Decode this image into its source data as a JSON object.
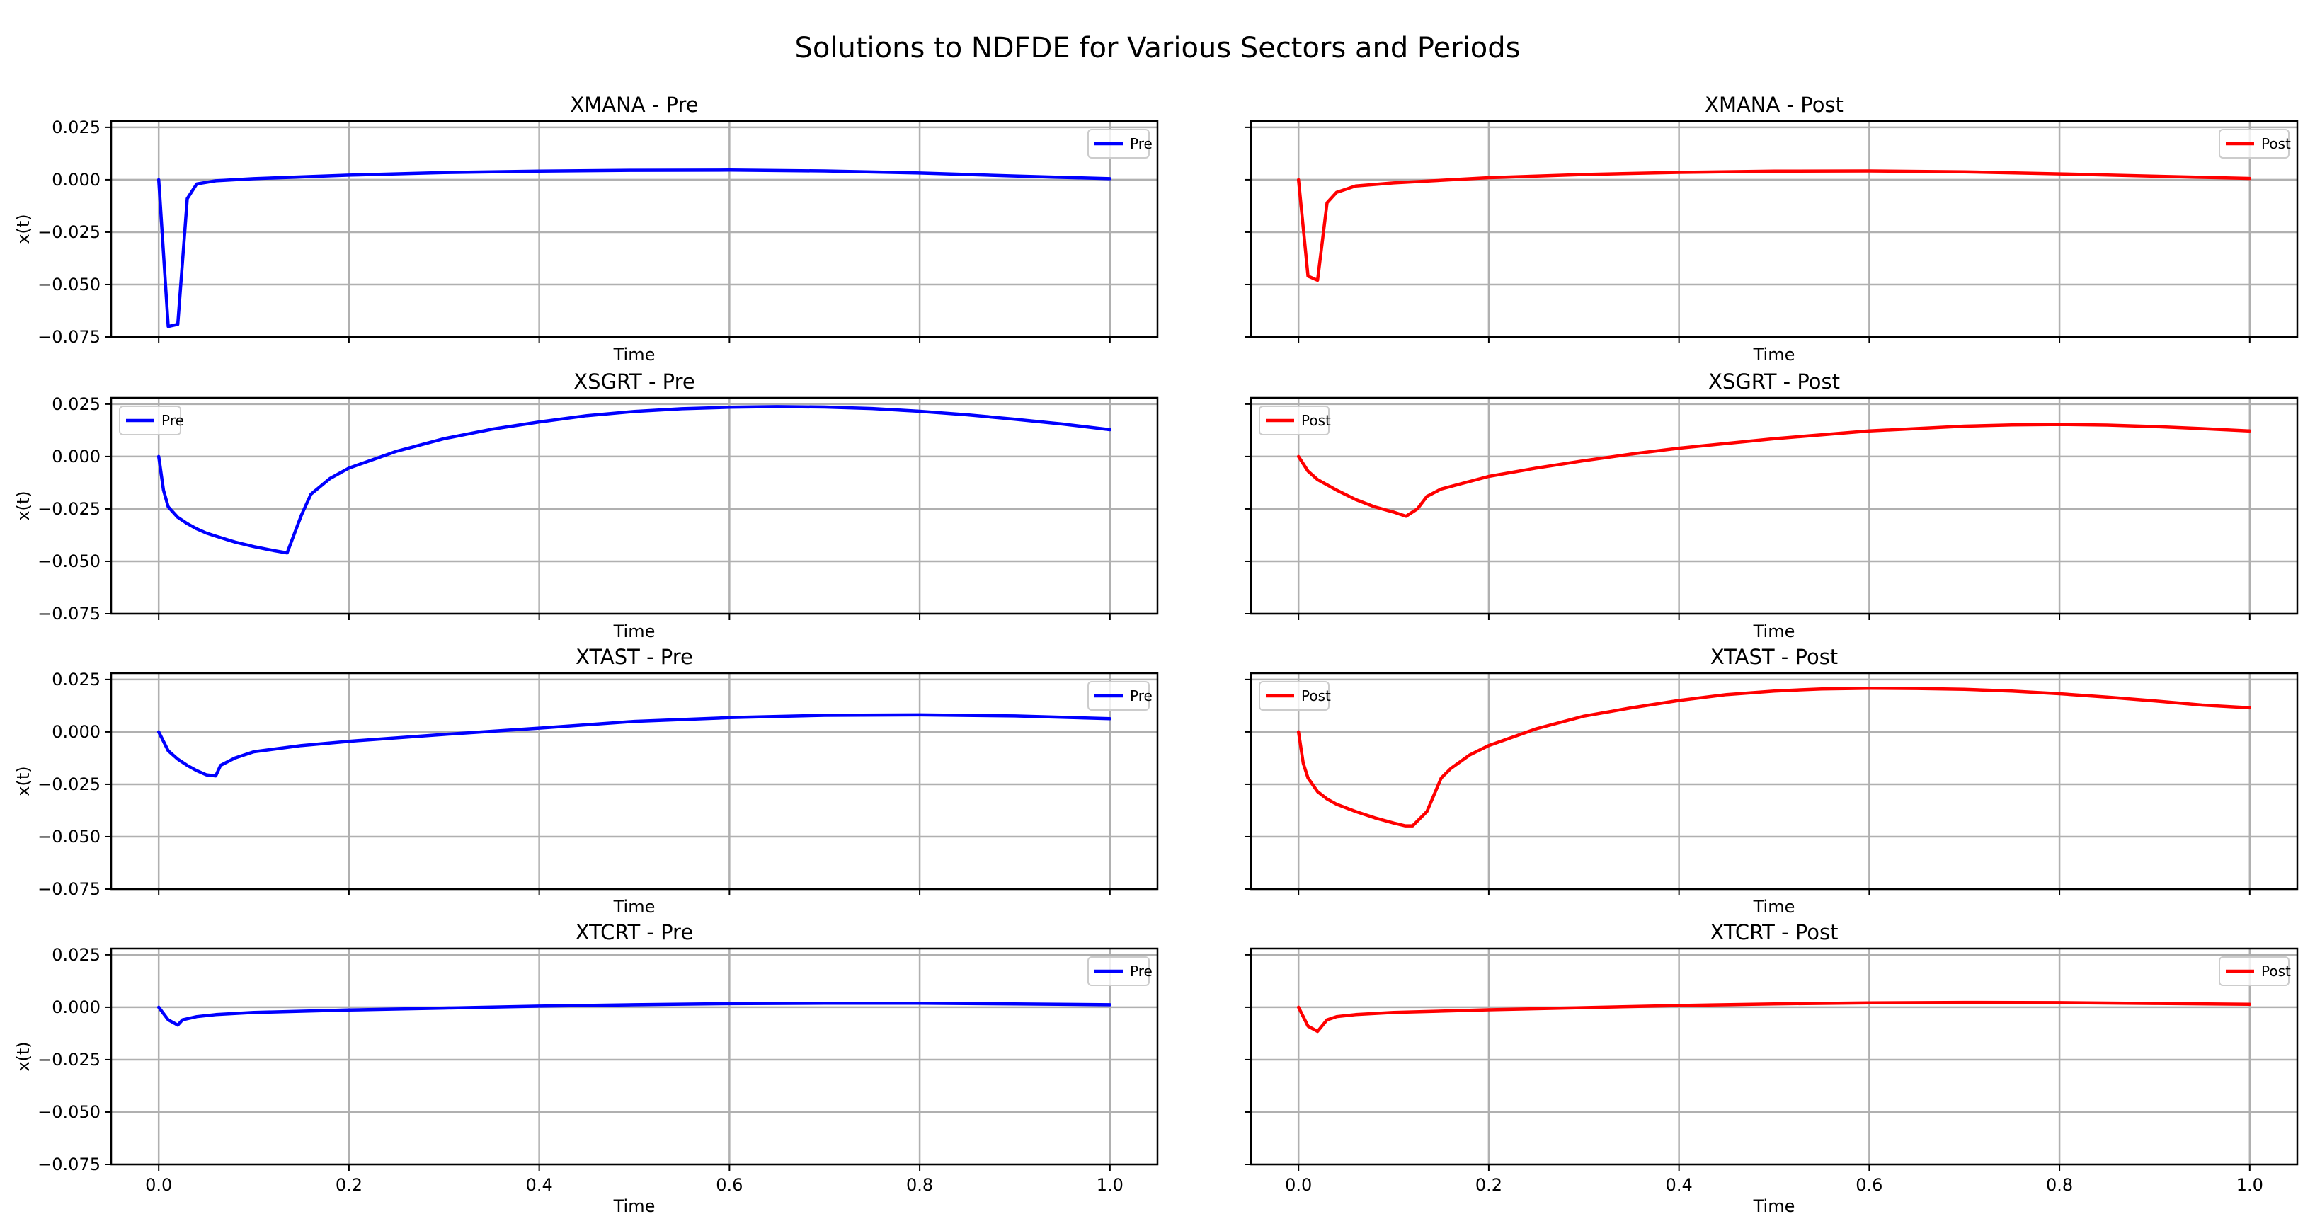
{
  "chart_data": {
    "type": "line",
    "title": "Solutions to NDFDE for Various Sectors and Periods",
    "xlim": [
      -0.05,
      1.05
    ],
    "ylim": [
      -0.075,
      0.028
    ],
    "x_ticks": [
      0.0,
      0.2,
      0.4,
      0.6,
      0.8,
      1.0
    ],
    "x_tick_labels": [
      "0.0",
      "0.2",
      "0.4",
      "0.6",
      "0.8",
      "1.0"
    ],
    "y_ticks": [
      0.025,
      0.0,
      -0.025,
      -0.05,
      -0.075
    ],
    "y_tick_labels": [
      "0.025",
      "0.000",
      "−0.025",
      "−0.050",
      "−0.075"
    ],
    "grid": true,
    "colors": {
      "Pre": "#0000ff",
      "Post": "#ff0000"
    },
    "panels": [
      {
        "title": "XMANA - Pre",
        "xlabel": "Time",
        "ylabel": "x(t)",
        "legend": "Pre",
        "legend_loc": "upper right",
        "x": [
          0,
          0.01,
          0.02,
          0.03,
          0.04,
          0.06,
          0.1,
          0.2,
          0.3,
          0.4,
          0.5,
          0.6,
          0.7,
          0.8,
          0.9,
          1.0
        ],
        "y": [
          0,
          -0.07,
          -0.069,
          -0.009,
          -0.002,
          -0.0005,
          0.0005,
          0.0022,
          0.0034,
          0.0041,
          0.0045,
          0.0046,
          0.0042,
          0.0032,
          0.0018,
          0.0005
        ]
      },
      {
        "title": "XMANA - Post",
        "xlabel": "Time",
        "ylabel": "",
        "legend": "Post",
        "legend_loc": "upper right",
        "x": [
          0,
          0.01,
          0.02,
          0.03,
          0.04,
          0.06,
          0.1,
          0.2,
          0.3,
          0.4,
          0.5,
          0.6,
          0.7,
          0.8,
          0.9,
          1.0
        ],
        "y": [
          0,
          -0.046,
          -0.048,
          -0.011,
          -0.006,
          -0.003,
          -0.0015,
          0.001,
          0.0025,
          0.0035,
          0.0041,
          0.0042,
          0.0038,
          0.0028,
          0.0017,
          0.0006
        ]
      },
      {
        "title": "XSGRT - Pre",
        "xlabel": "Time",
        "ylabel": "x(t)",
        "legend": "Pre",
        "legend_loc": "upper left",
        "x": [
          0,
          0.005,
          0.01,
          0.02,
          0.03,
          0.04,
          0.05,
          0.06,
          0.08,
          0.1,
          0.12,
          0.135,
          0.15,
          0.16,
          0.18,
          0.2,
          0.25,
          0.3,
          0.35,
          0.4,
          0.45,
          0.5,
          0.55,
          0.6,
          0.65,
          0.7,
          0.75,
          0.8,
          0.85,
          0.9,
          0.95,
          1.0
        ],
        "y": [
          0,
          -0.016,
          -0.024,
          -0.029,
          -0.032,
          -0.0345,
          -0.0365,
          -0.038,
          -0.0408,
          -0.043,
          -0.0448,
          -0.046,
          -0.028,
          -0.018,
          -0.0105,
          -0.0055,
          0.0025,
          0.0085,
          0.013,
          0.0165,
          0.0195,
          0.0215,
          0.0228,
          0.0235,
          0.0238,
          0.0236,
          0.0229,
          0.0216,
          0.0199,
          0.0178,
          0.0155,
          0.0128
        ]
      },
      {
        "title": "XSGRT - Post",
        "xlabel": "Time",
        "ylabel": "",
        "legend": "Post",
        "legend_loc": "upper left",
        "x": [
          0,
          0.01,
          0.02,
          0.04,
          0.06,
          0.08,
          0.1,
          0.113,
          0.125,
          0.135,
          0.15,
          0.2,
          0.25,
          0.3,
          0.35,
          0.4,
          0.5,
          0.6,
          0.7,
          0.75,
          0.8,
          0.85,
          0.9,
          0.95,
          1.0
        ],
        "y": [
          0,
          -0.007,
          -0.011,
          -0.016,
          -0.0205,
          -0.024,
          -0.0265,
          -0.0285,
          -0.025,
          -0.019,
          -0.0155,
          -0.0095,
          -0.0055,
          -0.002,
          0.0012,
          0.004,
          0.0085,
          0.0122,
          0.0145,
          0.0151,
          0.0153,
          0.015,
          0.0143,
          0.0133,
          0.0122
        ]
      },
      {
        "title": "XTAST - Pre",
        "xlabel": "Time",
        "ylabel": "x(t)",
        "legend": "Pre",
        "legend_loc": "upper right",
        "x": [
          0,
          0.005,
          0.01,
          0.02,
          0.03,
          0.04,
          0.05,
          0.06,
          0.065,
          0.08,
          0.1,
          0.15,
          0.2,
          0.3,
          0.4,
          0.5,
          0.6,
          0.7,
          0.8,
          0.9,
          1.0
        ],
        "y": [
          0,
          -0.0045,
          -0.009,
          -0.013,
          -0.016,
          -0.0185,
          -0.0205,
          -0.021,
          -0.016,
          -0.0125,
          -0.0095,
          -0.0065,
          -0.0045,
          -0.0012,
          0.0018,
          0.005,
          0.0068,
          0.0079,
          0.0081,
          0.0076,
          0.0063
        ]
      },
      {
        "title": "XTAST - Post",
        "xlabel": "Time",
        "ylabel": "",
        "legend": "Post",
        "legend_loc": "upper left",
        "x": [
          0,
          0.005,
          0.01,
          0.02,
          0.03,
          0.04,
          0.06,
          0.08,
          0.1,
          0.112,
          0.12,
          0.135,
          0.15,
          0.16,
          0.18,
          0.2,
          0.25,
          0.3,
          0.35,
          0.4,
          0.45,
          0.5,
          0.55,
          0.6,
          0.65,
          0.7,
          0.75,
          0.8,
          0.85,
          0.9,
          0.95,
          1.0
        ],
        "y": [
          0,
          -0.015,
          -0.022,
          -0.0285,
          -0.032,
          -0.0345,
          -0.038,
          -0.041,
          -0.0435,
          -0.0448,
          -0.0448,
          -0.038,
          -0.022,
          -0.0175,
          -0.011,
          -0.0065,
          0.0015,
          0.0075,
          0.0115,
          0.015,
          0.0178,
          0.0195,
          0.0205,
          0.0208,
          0.0207,
          0.0203,
          0.0195,
          0.0182,
          0.0166,
          0.0148,
          0.0128,
          0.0115
        ]
      },
      {
        "title": "XTCRT - Pre",
        "xlabel": "Time",
        "ylabel": "x(t)",
        "legend": "Pre",
        "legend_loc": "upper right",
        "x": [
          0,
          0.01,
          0.02,
          0.025,
          0.04,
          0.06,
          0.1,
          0.2,
          0.3,
          0.4,
          0.5,
          0.6,
          0.7,
          0.8,
          0.9,
          1.0
        ],
        "y": [
          0,
          -0.006,
          -0.0085,
          -0.006,
          -0.0045,
          -0.0035,
          -0.0025,
          -0.0013,
          -0.0004,
          0.0005,
          0.0012,
          0.0017,
          0.0019,
          0.0019,
          0.0016,
          0.0012
        ]
      },
      {
        "title": "XTCRT - Post",
        "xlabel": "Time",
        "ylabel": "",
        "legend": "Post",
        "legend_loc": "upper right",
        "x": [
          0,
          0.01,
          0.02,
          0.03,
          0.04,
          0.06,
          0.1,
          0.2,
          0.3,
          0.4,
          0.5,
          0.6,
          0.7,
          0.8,
          0.9,
          1.0
        ],
        "y": [
          0,
          -0.009,
          -0.0115,
          -0.006,
          -0.0045,
          -0.0035,
          -0.0025,
          -0.0012,
          -0.0002,
          0.0008,
          0.0016,
          0.0021,
          0.0023,
          0.0022,
          0.0018,
          0.0014
        ]
      }
    ]
  }
}
